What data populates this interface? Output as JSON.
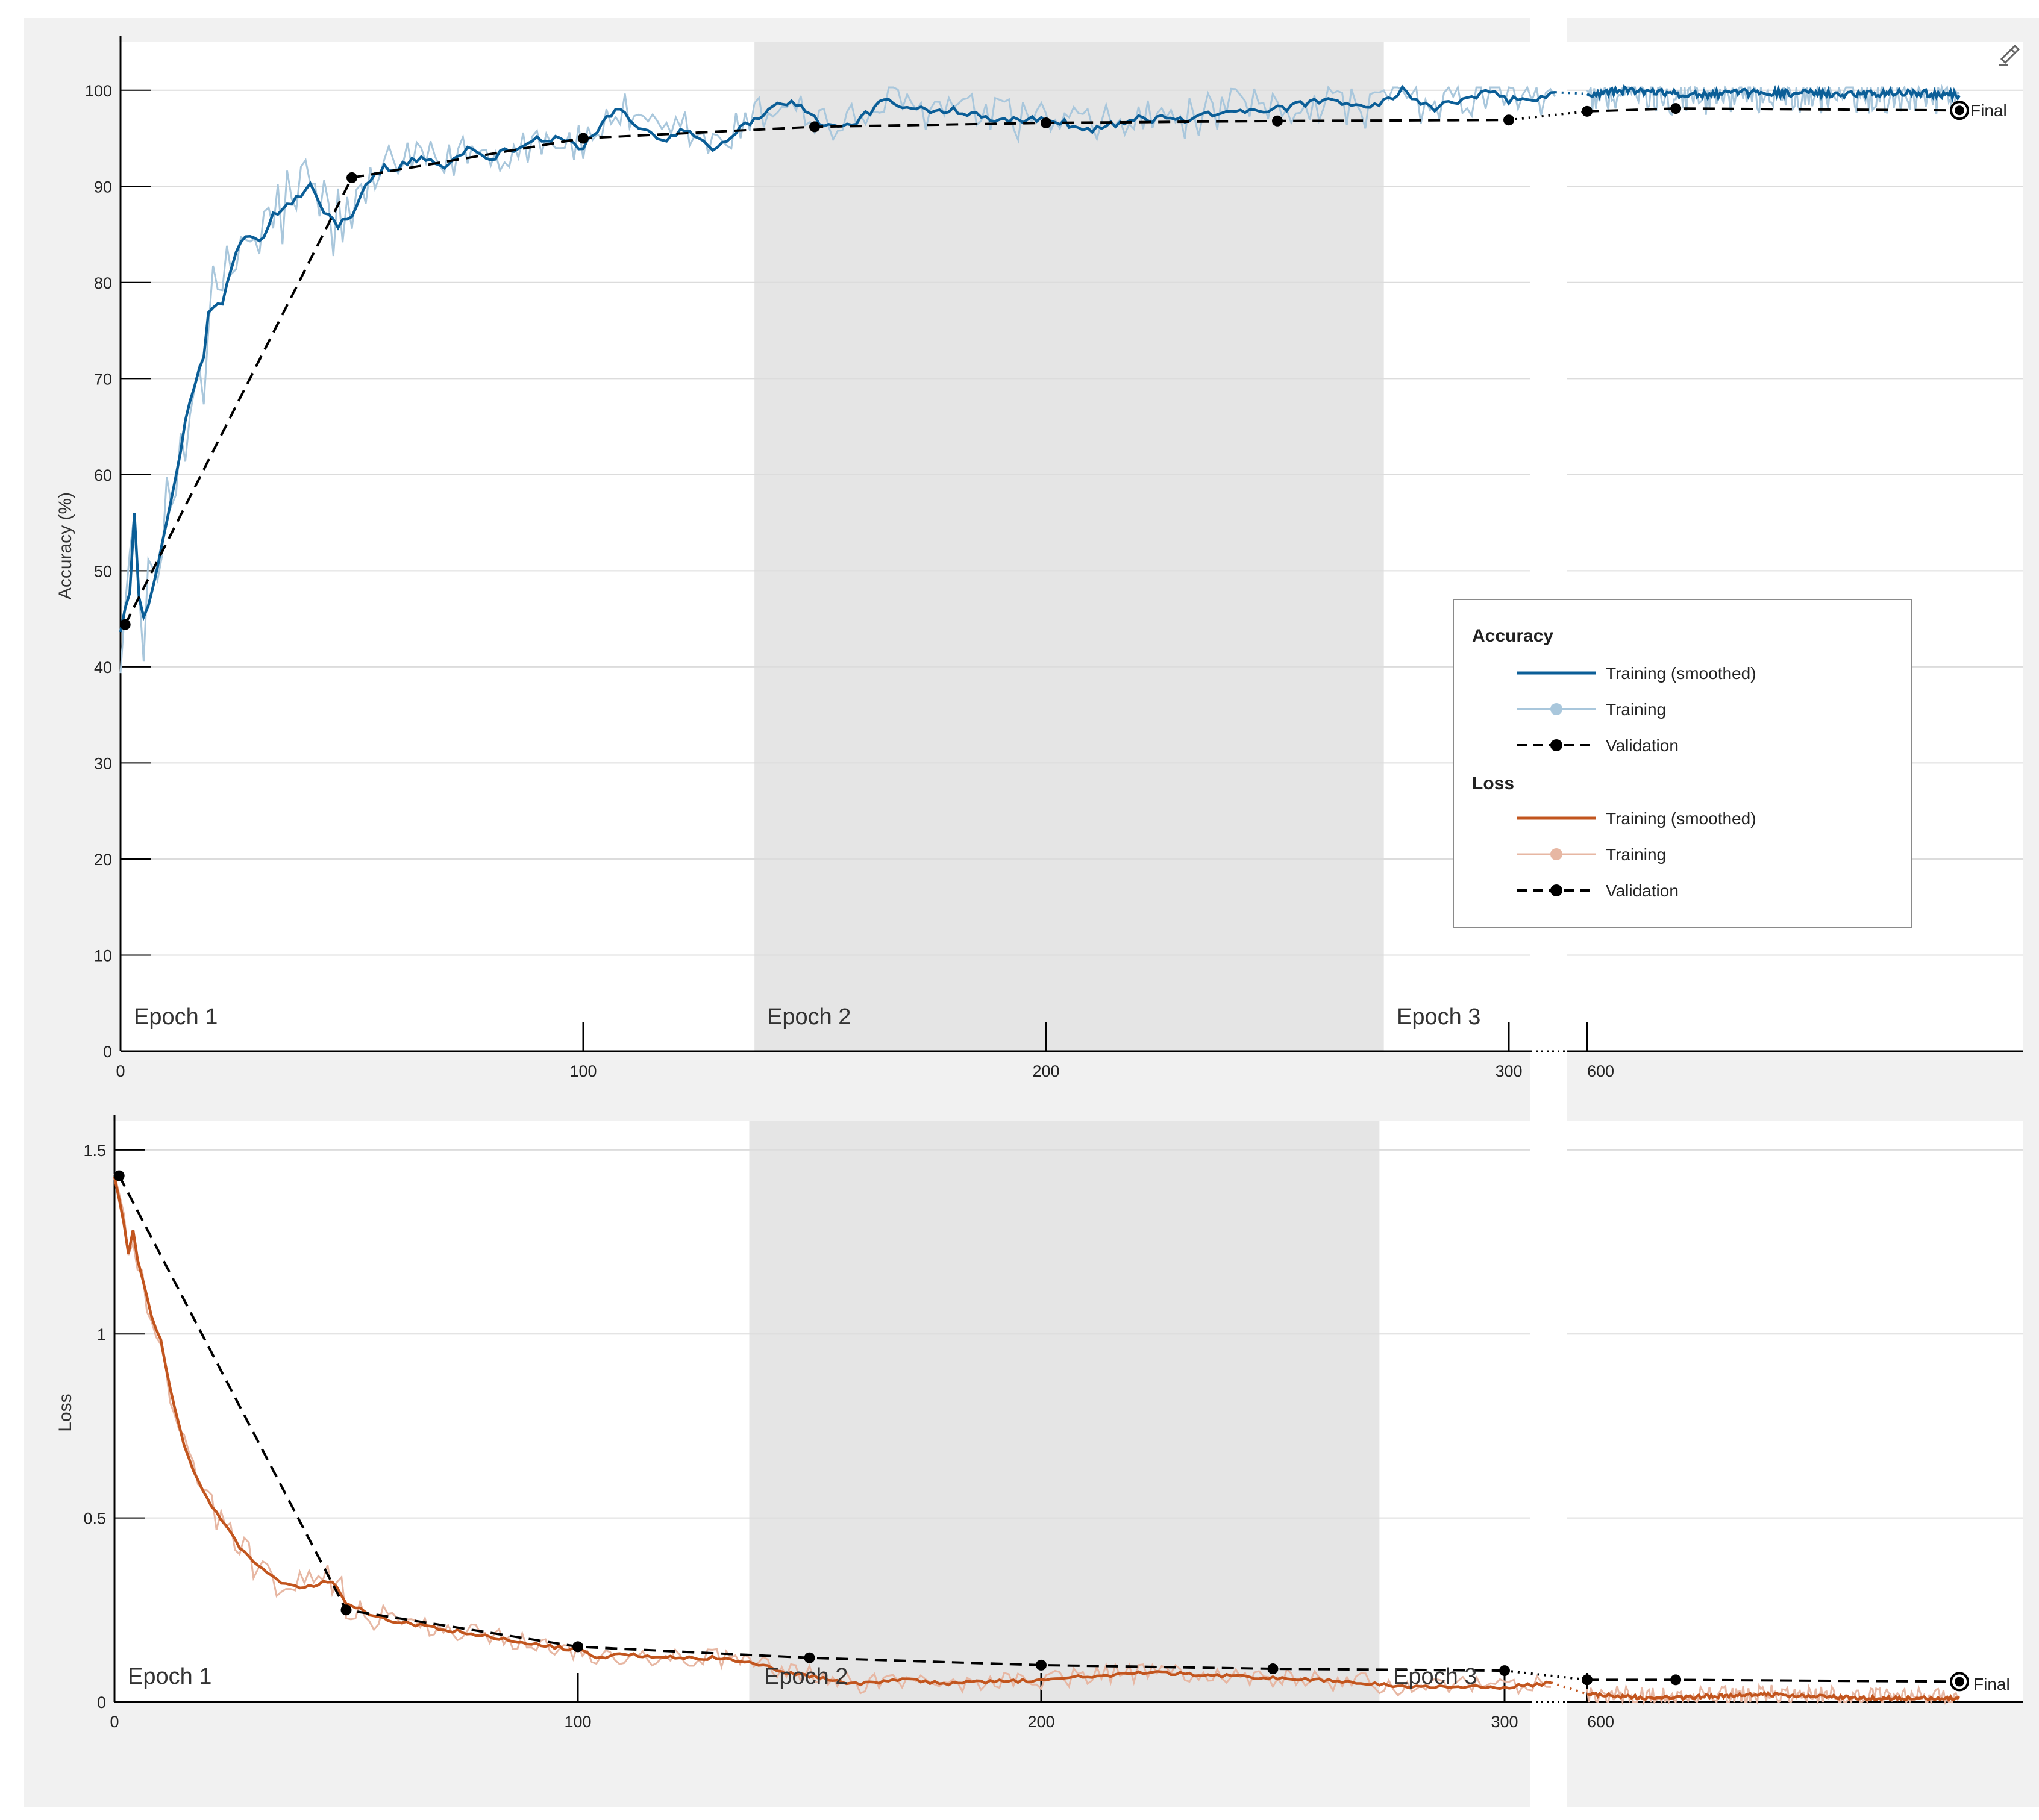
{
  "chart_data": [
    {
      "type": "line",
      "ylabel": "Accuracy (%)",
      "ylim": [
        0,
        100
      ],
      "yticks": [
        0,
        10,
        20,
        30,
        40,
        50,
        60,
        70,
        80,
        90,
        100
      ],
      "x_ticks_left": [
        0,
        100,
        200,
        300
      ],
      "x_ticks_right": [
        600
      ],
      "epoch_labels": [
        "Epoch 1",
        "Epoch 2",
        "Epoch 3"
      ],
      "epoch_shading_iterations": [
        137,
        273
      ],
      "grid": true,
      "colors": {
        "smoothed": "#0b5e97",
        "raw": "#a9c7dc",
        "validation": "#000000"
      },
      "training_smoothed_keypoints": [
        [
          0,
          44
        ],
        [
          2,
          48
        ],
        [
          3,
          56
        ],
        [
          4,
          47
        ],
        [
          5,
          45
        ],
        [
          8,
          50
        ],
        [
          10,
          55
        ],
        [
          12,
          60
        ],
        [
          15,
          68
        ],
        [
          18,
          72
        ],
        [
          19,
          77
        ],
        [
          22,
          78
        ],
        [
          25,
          83
        ],
        [
          27,
          85
        ],
        [
          30,
          84
        ],
        [
          33,
          87
        ],
        [
          36,
          88
        ],
        [
          39,
          89
        ],
        [
          41,
          90
        ],
        [
          43,
          88
        ],
        [
          45,
          87
        ],
        [
          47,
          86
        ],
        [
          50,
          87
        ],
        [
          53,
          90
        ],
        [
          57,
          92
        ],
        [
          60,
          92
        ],
        [
          65,
          93
        ],
        [
          70,
          92
        ],
        [
          75,
          94
        ],
        [
          80,
          93
        ],
        [
          85,
          94
        ],
        [
          90,
          95
        ],
        [
          95,
          95
        ],
        [
          100,
          94
        ],
        [
          105,
          97
        ],
        [
          108,
          98
        ],
        [
          112,
          96
        ],
        [
          118,
          95
        ],
        [
          122,
          96
        ],
        [
          128,
          94
        ],
        [
          134,
          96
        ],
        [
          140,
          98
        ],
        [
          145,
          99
        ],
        [
          150,
          97
        ],
        [
          155,
          96
        ],
        [
          160,
          97
        ],
        [
          165,
          99
        ],
        [
          170,
          98
        ],
        [
          180,
          98
        ],
        [
          190,
          97
        ],
        [
          200,
          97
        ],
        [
          210,
          96
        ],
        [
          220,
          97
        ],
        [
          230,
          97
        ],
        [
          240,
          98
        ],
        [
          250,
          98
        ],
        [
          260,
          99
        ],
        [
          270,
          98
        ],
        [
          277,
          100
        ],
        [
          283,
          98
        ],
        [
          290,
          99
        ],
        [
          297,
          100
        ],
        [
          300,
          99
        ],
        [
          305,
          99
        ],
        [
          310,
          99.5
        ]
      ],
      "training_smoothed_right_keypoints": [
        [
          600,
          99.5
        ],
        [
          620,
          100
        ],
        [
          660,
          99.5
        ],
        [
          700,
          99.8
        ],
        [
          740,
          99.6
        ],
        [
          780,
          99.8
        ],
        [
          810,
          99.5
        ]
      ],
      "validation": {
        "x": [
          1,
          50,
          100,
          150,
          200,
          250,
          300,
          600,
          650,
          810
        ],
        "y": [
          44.4,
          90.9,
          95.0,
          96.2,
          96.6,
          96.8,
          96.9,
          97.8,
          98.1,
          97.9
        ]
      },
      "final_label": "Final"
    },
    {
      "type": "line",
      "ylabel": "Loss",
      "ylim": [
        0,
        1.5
      ],
      "yticks": [
        0,
        0.5,
        1,
        1.5
      ],
      "ytick_labels": [
        "0",
        "0.5",
        "1",
        "1.5"
      ],
      "x_ticks_left": [
        0,
        100,
        200,
        300
      ],
      "x_ticks_right": [
        600
      ],
      "epoch_labels": [
        "Epoch 1",
        "Epoch 2",
        "Epoch 3"
      ],
      "epoch_shading_iterations": [
        137,
        273
      ],
      "grid": true,
      "colors": {
        "smoothed": "#c2551e",
        "raw": "#e7b7a3",
        "validation": "#000000"
      },
      "training_smoothed_keypoints": [
        [
          0,
          1.43
        ],
        [
          2,
          1.3
        ],
        [
          3,
          1.22
        ],
        [
          4,
          1.28
        ],
        [
          5,
          1.2
        ],
        [
          8,
          1.05
        ],
        [
          10,
          0.98
        ],
        [
          12,
          0.85
        ],
        [
          15,
          0.7
        ],
        [
          18,
          0.6
        ],
        [
          20,
          0.55
        ],
        [
          24,
          0.48
        ],
        [
          27,
          0.42
        ],
        [
          30,
          0.38
        ],
        [
          35,
          0.33
        ],
        [
          40,
          0.31
        ],
        [
          44,
          0.32
        ],
        [
          47,
          0.33
        ],
        [
          50,
          0.27
        ],
        [
          55,
          0.24
        ],
        [
          60,
          0.22
        ],
        [
          70,
          0.2
        ],
        [
          80,
          0.18
        ],
        [
          90,
          0.16
        ],
        [
          100,
          0.14
        ],
        [
          105,
          0.12
        ],
        [
          110,
          0.13
        ],
        [
          120,
          0.12
        ],
        [
          130,
          0.12
        ],
        [
          140,
          0.1
        ],
        [
          145,
          0.08
        ],
        [
          150,
          0.07
        ],
        [
          155,
          0.06
        ],
        [
          160,
          0.05
        ],
        [
          170,
          0.06
        ],
        [
          180,
          0.05
        ],
        [
          200,
          0.06
        ],
        [
          210,
          0.07
        ],
        [
          225,
          0.08
        ],
        [
          240,
          0.07
        ],
        [
          260,
          0.06
        ],
        [
          280,
          0.04
        ],
        [
          300,
          0.04
        ],
        [
          310,
          0.05
        ]
      ],
      "training_smoothed_right_keypoints": [
        [
          600,
          0.02
        ],
        [
          640,
          0.01
        ],
        [
          700,
          0.02
        ],
        [
          760,
          0.01
        ],
        [
          810,
          0.01
        ]
      ],
      "validation": {
        "x": [
          1,
          50,
          100,
          150,
          200,
          250,
          300,
          600,
          650,
          810
        ],
        "y": [
          1.43,
          0.25,
          0.15,
          0.12,
          0.1,
          0.09,
          0.085,
          0.06,
          0.06,
          0.055
        ]
      },
      "final_label": "Final"
    }
  ],
  "legend": {
    "placement": "right-lower (inside accuracy plot)",
    "groups": [
      {
        "title": "Accuracy",
        "items": [
          "Training (smoothed)",
          "Training",
          "Validation"
        ],
        "colors": [
          "#0b5e97",
          "#a9c7dc",
          "#000000"
        ]
      },
      {
        "title": "Loss",
        "items": [
          "Training (smoothed)",
          "Training",
          "Validation"
        ],
        "colors": [
          "#c2551e",
          "#e7b7a3",
          "#000000"
        ]
      }
    ]
  },
  "toolbar": {
    "icon": "brush-icon"
  }
}
